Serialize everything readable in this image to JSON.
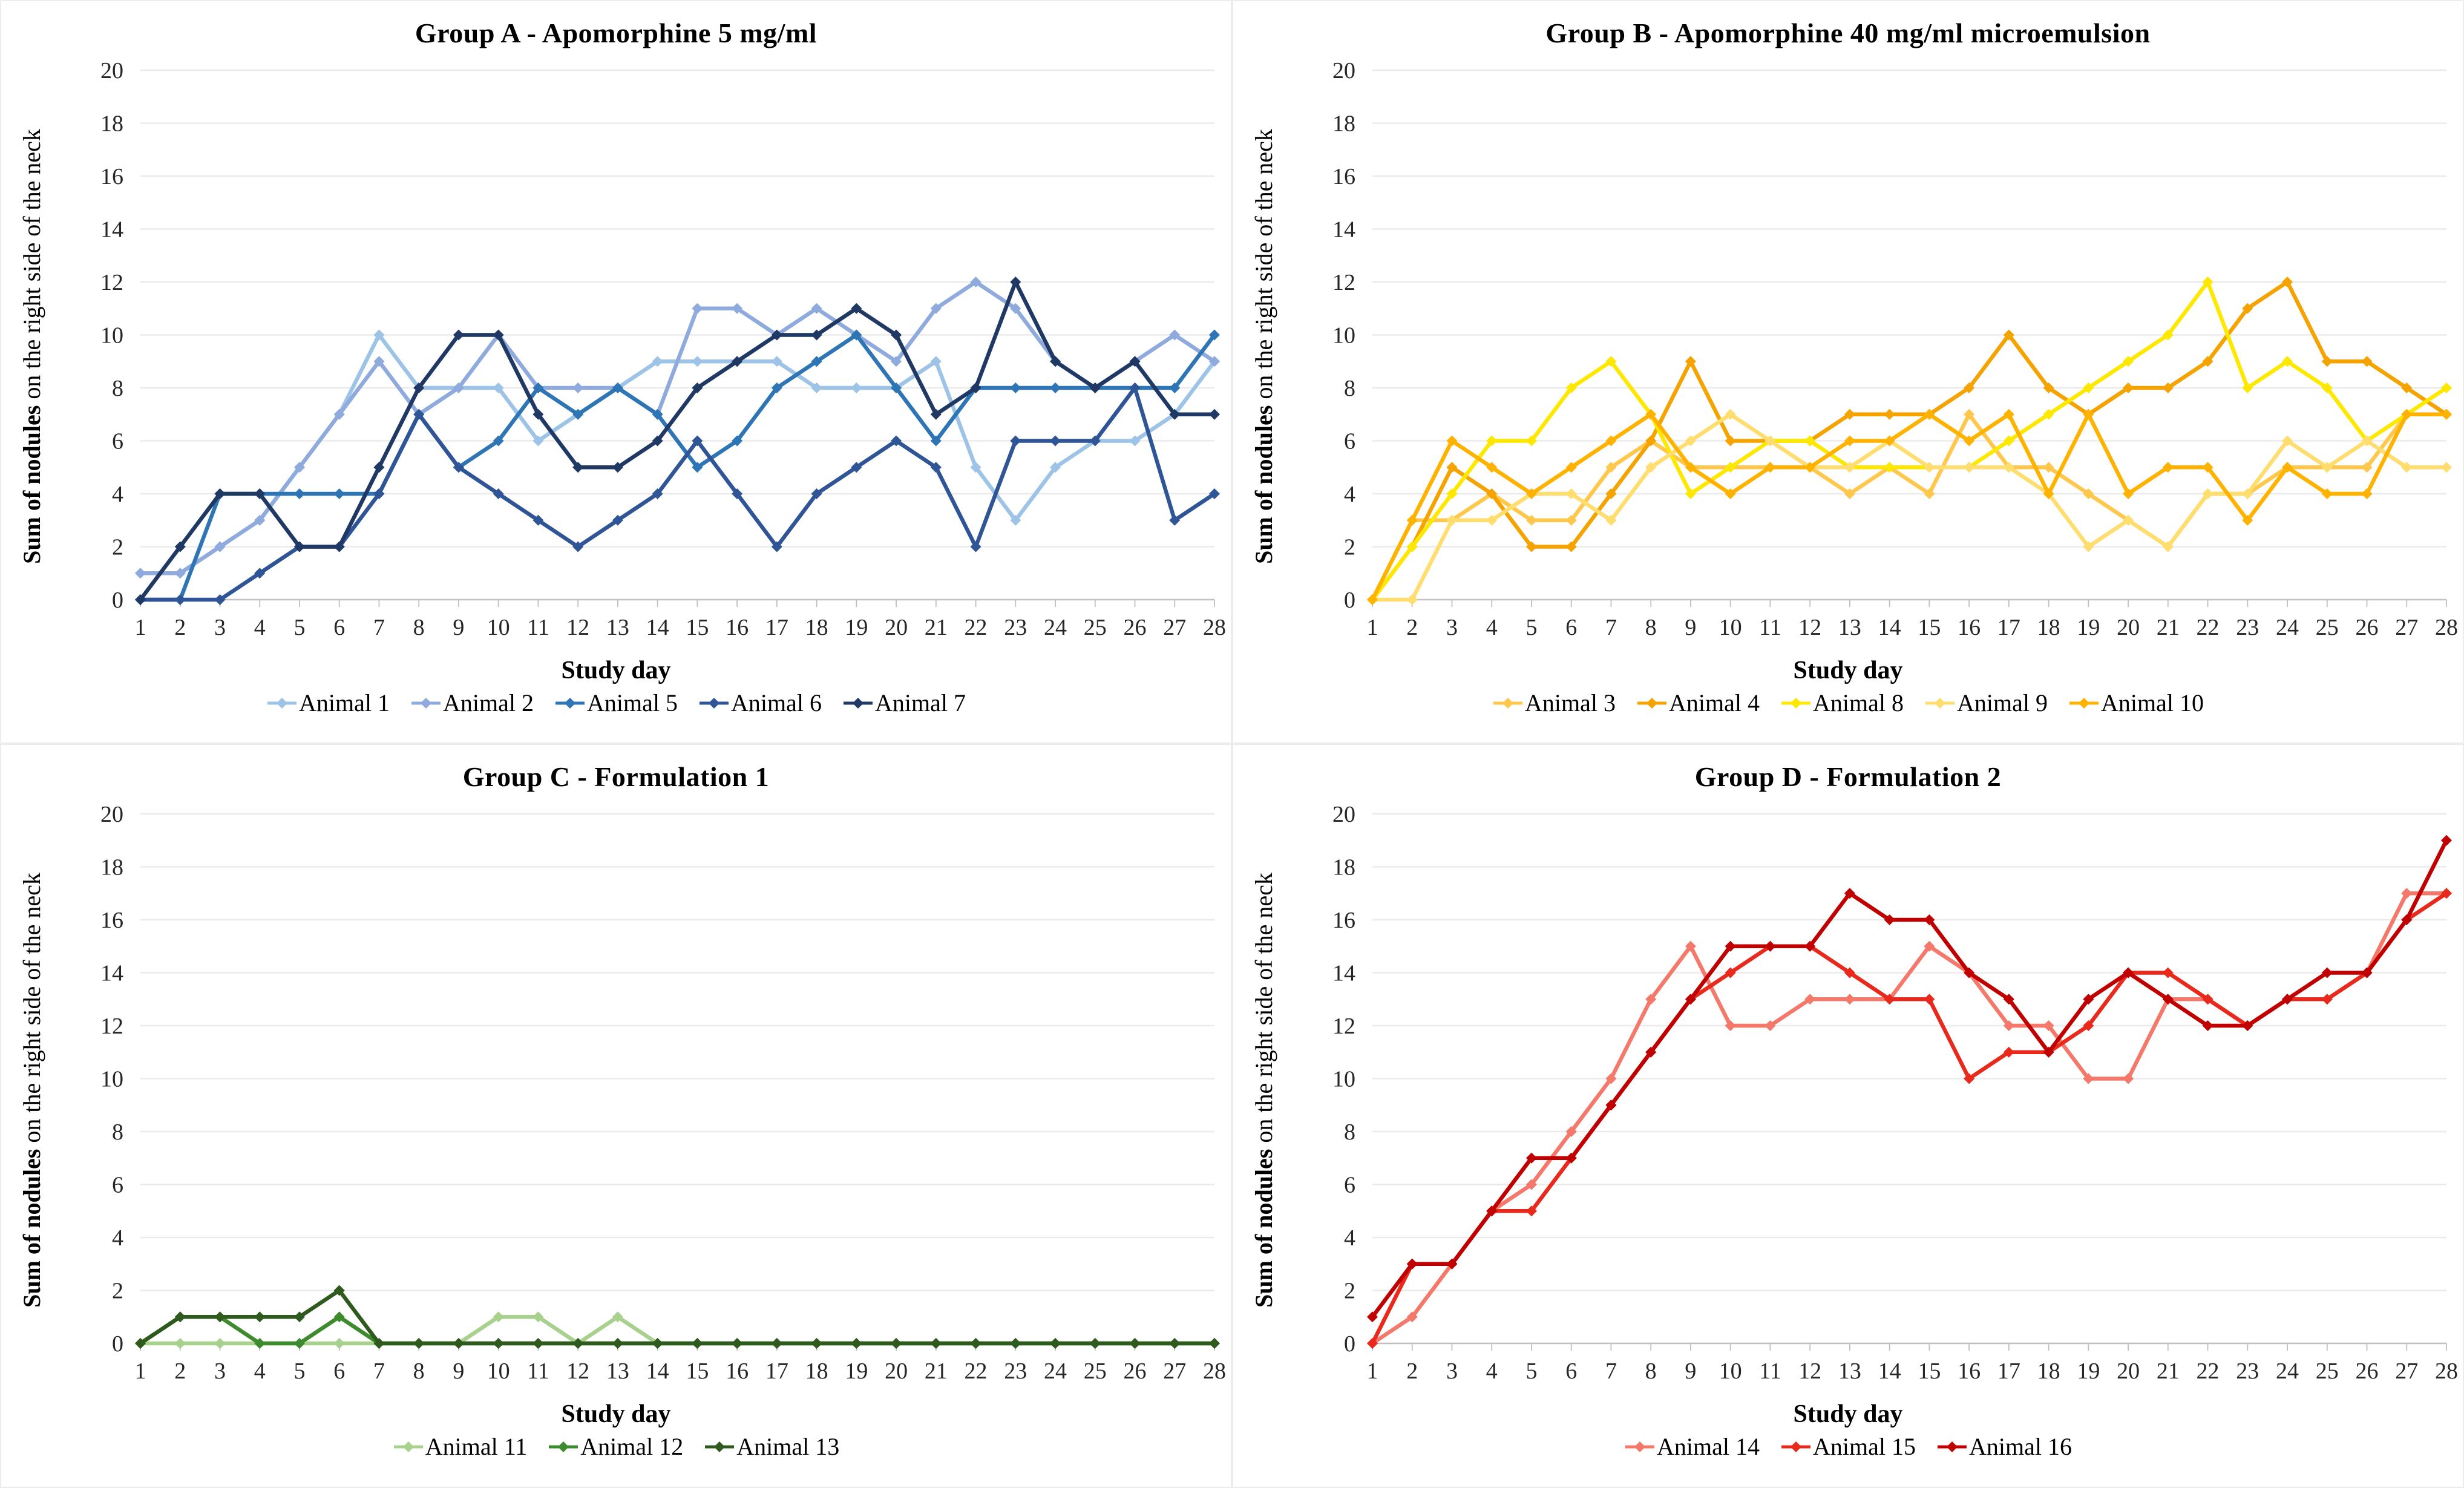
{
  "figure_title": "",
  "axes": {
    "y_min": 0,
    "y_max": 20,
    "y_step": 2,
    "x_min": 1,
    "x_max": 28
  },
  "colors": {
    "gridline": "#ebebeb",
    "axis": "#bfbfbf",
    "tick_text": "#262626"
  },
  "chart_data": [
    {
      "type": "line",
      "title": "Group A - Apomorphine 5 mg/ml",
      "xlabel": "Study day",
      "ylabel_bold": "Sum of nodules",
      "ylabel_rest": " on the right side of the neck",
      "ylim": [
        0,
        20
      ],
      "x": [
        1,
        2,
        3,
        4,
        5,
        6,
        7,
        8,
        9,
        10,
        11,
        12,
        13,
        14,
        15,
        16,
        17,
        18,
        19,
        20,
        21,
        22,
        23,
        24,
        25,
        26,
        27,
        28
      ],
      "series": [
        {
          "name": "Animal 1",
          "color": "#9dc3e6",
          "values": [
            1,
            1,
            2,
            3,
            5,
            7,
            10,
            8,
            8,
            8,
            6,
            7,
            8,
            9,
            9,
            9,
            9,
            8,
            8,
            8,
            9,
            5,
            3,
            5,
            6,
            6,
            7,
            9
          ]
        },
        {
          "name": "Animal 2",
          "color": "#8faadc",
          "values": [
            1,
            1,
            2,
            3,
            5,
            7,
            9,
            7,
            8,
            10,
            8,
            8,
            8,
            7,
            11,
            11,
            10,
            11,
            10,
            9,
            11,
            12,
            11,
            9,
            8,
            9,
            10,
            9
          ]
        },
        {
          "name": "Animal 5",
          "color": "#2e75b6",
          "values": [
            0,
            0,
            4,
            4,
            4,
            4,
            4,
            7,
            5,
            6,
            8,
            7,
            8,
            7,
            5,
            6,
            8,
            9,
            10,
            8,
            6,
            8,
            8,
            8,
            8,
            8,
            8,
            10
          ]
        },
        {
          "name": "Animal 6",
          "color": "#2f5597",
          "values": [
            0,
            0,
            0,
            1,
            2,
            2,
            4,
            7,
            5,
            4,
            3,
            2,
            3,
            4,
            6,
            4,
            2,
            4,
            5,
            6,
            5,
            2,
            6,
            6,
            6,
            8,
            3,
            4
          ]
        },
        {
          "name": "Animal 7",
          "color": "#1f3864",
          "values": [
            0,
            2,
            4,
            4,
            2,
            2,
            5,
            8,
            10,
            10,
            7,
            5,
            5,
            6,
            8,
            9,
            10,
            10,
            11,
            10,
            7,
            8,
            12,
            9,
            8,
            9,
            7,
            7
          ]
        }
      ]
    },
    {
      "type": "line",
      "title": "Group B -  Apomorphine 40 mg/ml microemulsion",
      "xlabel": "Study day",
      "ylabel_bold": "Sum of nodules",
      "ylabel_rest": " on the right side of the neck",
      "ylim": [
        0,
        20
      ],
      "x": [
        1,
        2,
        3,
        4,
        5,
        6,
        7,
        8,
        9,
        10,
        11,
        12,
        13,
        14,
        15,
        16,
        17,
        18,
        19,
        20,
        21,
        22,
        23,
        24,
        25,
        26,
        27,
        28
      ],
      "series": [
        {
          "name": "Animal 3",
          "color": "#ffc84d",
          "values": [
            0,
            3,
            3,
            4,
            3,
            3,
            5,
            6,
            5,
            5,
            5,
            5,
            4,
            5,
            4,
            7,
            5,
            5,
            4,
            3,
            2,
            4,
            4,
            5,
            5,
            5,
            7,
            7
          ]
        },
        {
          "name": "Animal 4",
          "color": "#f5a300",
          "values": [
            0,
            2,
            5,
            4,
            2,
            2,
            4,
            6,
            9,
            6,
            6,
            6,
            7,
            7,
            7,
            8,
            10,
            8,
            7,
            8,
            8,
            9,
            11,
            12,
            9,
            9,
            8,
            7
          ]
        },
        {
          "name": "Animal 8",
          "color": "#ffe800",
          "values": [
            0,
            2,
            4,
            6,
            6,
            8,
            9,
            7,
            4,
            5,
            6,
            6,
            5,
            5,
            5,
            5,
            6,
            7,
            8,
            9,
            10,
            12,
            8,
            9,
            8,
            6,
            7,
            8
          ]
        },
        {
          "name": "Animal 9",
          "color": "#ffdd6e",
          "values": [
            0,
            0,
            3,
            3,
            4,
            4,
            3,
            5,
            6,
            7,
            6,
            5,
            5,
            6,
            5,
            5,
            5,
            4,
            2,
            3,
            2,
            4,
            4,
            6,
            5,
            6,
            5,
            5
          ]
        },
        {
          "name": "Animal 10",
          "color": "#ffb300",
          "values": [
            0,
            3,
            6,
            5,
            4,
            5,
            6,
            7,
            5,
            4,
            5,
            5,
            6,
            6,
            7,
            6,
            7,
            4,
            7,
            4,
            5,
            5,
            3,
            5,
            4,
            4,
            7,
            7
          ]
        }
      ]
    },
    {
      "type": "line",
      "title": "Group C - Formulation 1",
      "xlabel": "Study day",
      "ylabel_bold": "Sum of nodules",
      "ylabel_rest": " on the right side of the neck",
      "ylim": [
        0,
        20
      ],
      "x": [
        1,
        2,
        3,
        4,
        5,
        6,
        7,
        8,
        9,
        10,
        11,
        12,
        13,
        14,
        15,
        16,
        17,
        18,
        19,
        20,
        21,
        22,
        23,
        24,
        25,
        26,
        27,
        28
      ],
      "series": [
        {
          "name": "Animal 11",
          "color": "#a9d18e",
          "values": [
            0,
            0,
            0,
            0,
            0,
            0,
            0,
            0,
            0,
            1,
            1,
            0,
            1,
            0,
            0,
            0,
            0,
            0,
            0,
            0,
            0,
            0,
            0,
            0,
            0,
            0,
            0,
            0
          ]
        },
        {
          "name": "Animal 12",
          "color": "#3e8a2e",
          "values": [
            0,
            1,
            1,
            0,
            0,
            1,
            0,
            0,
            0,
            0,
            0,
            0,
            0,
            0,
            0,
            0,
            0,
            0,
            0,
            0,
            0,
            0,
            0,
            0,
            0,
            0,
            0,
            0
          ]
        },
        {
          "name": "Animal 13",
          "color": "#2f5a1d",
          "values": [
            0,
            1,
            1,
            1,
            1,
            2,
            0,
            0,
            0,
            0,
            0,
            0,
            0,
            0,
            0,
            0,
            0,
            0,
            0,
            0,
            0,
            0,
            0,
            0,
            0,
            0,
            0,
            0
          ]
        }
      ]
    },
    {
      "type": "line",
      "title": "Group D - Formulation 2",
      "xlabel": "Study day",
      "ylabel_bold": "Sum of nodules",
      "ylabel_rest": " on the right side of the neck",
      "ylim": [
        0,
        20
      ],
      "x": [
        1,
        2,
        3,
        4,
        5,
        6,
        7,
        8,
        9,
        10,
        11,
        12,
        13,
        14,
        15,
        16,
        17,
        18,
        19,
        20,
        21,
        22,
        23,
        24,
        25,
        26,
        27,
        28
      ],
      "series": [
        {
          "name": "Animal 14",
          "color": "#f4796b",
          "values": [
            0,
            1,
            3,
            5,
            6,
            8,
            10,
            13,
            15,
            12,
            12,
            13,
            13,
            13,
            15,
            14,
            12,
            12,
            10,
            10,
            13,
            13,
            12,
            13,
            13,
            14,
            17,
            17
          ]
        },
        {
          "name": "Animal 15",
          "color": "#e8291c",
          "values": [
            0,
            3,
            3,
            5,
            5,
            7,
            9,
            11,
            13,
            14,
            15,
            15,
            14,
            13,
            13,
            10,
            11,
            11,
            12,
            14,
            14,
            13,
            12,
            13,
            13,
            14,
            16,
            17
          ]
        },
        {
          "name": "Animal 16",
          "color": "#c00000",
          "values": [
            1,
            3,
            3,
            5,
            7,
            7,
            9,
            11,
            13,
            15,
            15,
            15,
            17,
            16,
            16,
            14,
            13,
            11,
            13,
            14,
            13,
            12,
            12,
            13,
            14,
            14,
            16,
            19
          ]
        }
      ]
    }
  ]
}
